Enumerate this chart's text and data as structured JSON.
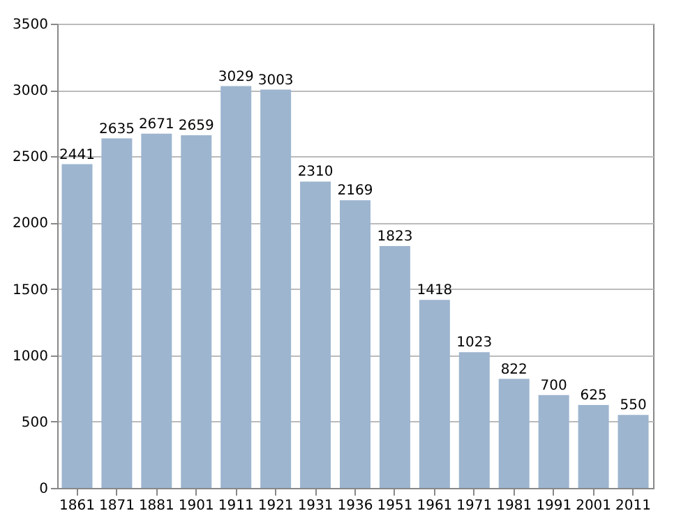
{
  "chart_data": {
    "type": "bar",
    "categories": [
      "1861",
      "1871",
      "1881",
      "1901",
      "1911",
      "1921",
      "1931",
      "1936",
      "1951",
      "1961",
      "1971",
      "1981",
      "1991",
      "2001",
      "2011"
    ],
    "values": [
      2441,
      2635,
      2671,
      2659,
      3029,
      3003,
      2310,
      2169,
      1823,
      1418,
      1023,
      822,
      700,
      625,
      550
    ],
    "color": "#9db5cf",
    "ylim": [
      0,
      3500
    ],
    "yticks": [
      0,
      500,
      1000,
      1500,
      2000,
      2500,
      3000,
      3500
    ],
    "grid": "y",
    "data_labels": true
  }
}
